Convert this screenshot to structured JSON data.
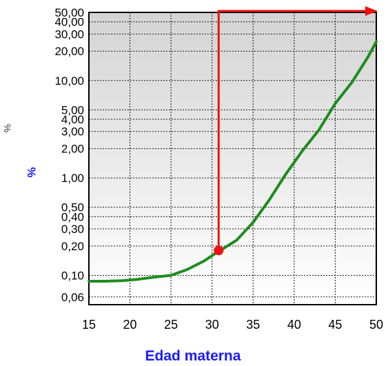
{
  "chart_data": {
    "type": "line",
    "title": "",
    "xlabel": "Edad materna",
    "ylabel": "%",
    "edge_label": "%",
    "x_ticks": [
      "15",
      "20",
      "25",
      "30",
      "35",
      "40",
      "45",
      "50"
    ],
    "y_ticks": [
      "0,06",
      "0,10",
      "0,20",
      "0,30",
      "0,40",
      "0,50",
      "1,00",
      "2,00",
      "3,00",
      "4,00",
      "5,00",
      "10,00",
      "20,00",
      "30,00",
      "40,00",
      "50,00"
    ],
    "y_tick_values": [
      0.06,
      0.1,
      0.2,
      0.3,
      0.4,
      0.5,
      1,
      2,
      3,
      4,
      5,
      10,
      20,
      30,
      40,
      50
    ],
    "xlim": [
      15,
      50
    ],
    "ylim": [
      0.05,
      50
    ],
    "y_scale": "log",
    "grid": true,
    "series": [
      {
        "color": "#1e8c1e",
        "x": [
          15,
          17,
          19,
          21,
          23,
          25,
          27,
          29,
          30.5,
          31,
          33,
          35,
          37,
          39,
          41,
          43,
          45,
          47,
          49,
          50
        ],
        "y": [
          0.087,
          0.087,
          0.088,
          0.091,
          0.096,
          0.1,
          0.115,
          0.14,
          0.17,
          0.18,
          0.23,
          0.35,
          0.6,
          1.1,
          1.9,
          3.1,
          5.8,
          9.5,
          17.5,
          25
        ]
      }
    ],
    "marker": {
      "x": 30.8,
      "y": 0.18,
      "color": "#ee1111"
    },
    "arrow": {
      "x": 30.8,
      "color": "#ee1111"
    }
  }
}
